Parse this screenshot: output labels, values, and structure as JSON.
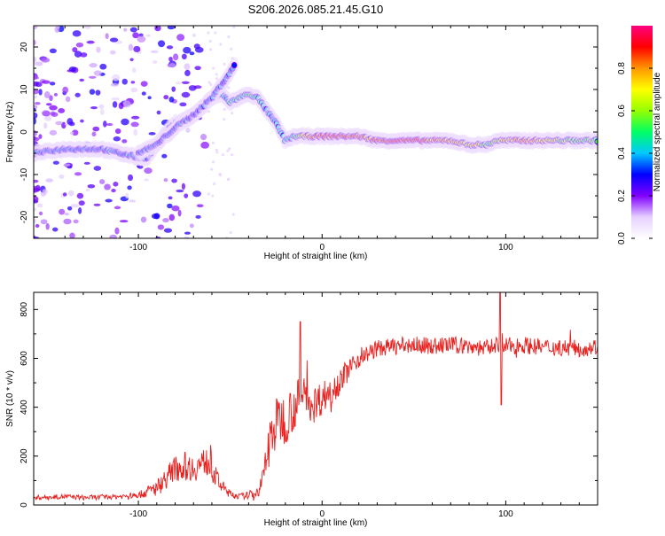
{
  "figure_title": "S206.2026.085.21.45.G10",
  "chart_data": [
    {
      "type": "heatmap",
      "title": "S206.2026.085.21.45.G10",
      "xlabel": "Height of straight line (km)",
      "ylabel": "Frequency (Hz)",
      "xlim": [
        -157,
        150
      ],
      "ylim": [
        -25,
        25
      ],
      "x_ticks": [
        -100,
        0,
        100
      ],
      "y_ticks": [
        20,
        10,
        0,
        -10,
        -20
      ],
      "colorbar": {
        "label": "Normalized spectral amplitude",
        "range": [
          0,
          1
        ],
        "ticks": [
          0.0,
          0.2,
          0.4,
          0.6,
          0.8
        ],
        "colormap": [
          "#ffffff",
          "#e6d0ff",
          "#8000ff",
          "#0000ff",
          "#00c8ff",
          "#00ff64",
          "#96ff00",
          "#ffff00",
          "#ff9600",
          "#ff0000",
          "#ff0080"
        ]
      },
      "ridge_trace": {
        "x": [
          -157,
          -140,
          -120,
          -110,
          -100,
          -95,
          -90,
          -85,
          -80,
          -75,
          -70,
          -65,
          -60,
          -55,
          -50,
          -45,
          -40,
          -35,
          -30,
          -25,
          -20,
          -15,
          -10,
          -5,
          0,
          10,
          20,
          30,
          40,
          50,
          60,
          70,
          80,
          85,
          90,
          95,
          100,
          110,
          120,
          130,
          150
        ],
        "frequency": [
          -5,
          -4,
          -4,
          -5,
          -6,
          -6,
          -3,
          0,
          2,
          3,
          4,
          6,
          8,
          9,
          7,
          8,
          9,
          8,
          5,
          2,
          -2,
          -1,
          -1,
          -1,
          -1,
          -1,
          -1,
          -2,
          -2,
          -2,
          -2,
          -2,
          -3,
          -3,
          -3,
          -2,
          -2,
          -2,
          -2,
          -2,
          -2
        ],
        "amplitude": [
          0.3,
          0.35,
          0.3,
          0.35,
          0.35,
          0.35,
          0.3,
          0.3,
          0.3,
          0.35,
          0.35,
          0.4,
          0.4,
          0.35,
          0.45,
          0.45,
          0.5,
          0.45,
          0.35,
          0.4,
          0.45,
          0.5,
          0.7,
          0.8,
          0.85,
          0.9,
          0.8,
          0.85,
          0.9,
          0.9,
          0.8,
          0.75,
          0.7,
          0.7,
          0.5,
          0.6,
          0.7,
          0.85,
          0.75,
          0.6,
          0.55
        ]
      },
      "upper_branch": {
        "x": [
          -100,
          -90,
          -80,
          -70,
          -60,
          -55,
          -50,
          -47
        ],
        "frequency": [
          -5,
          -3,
          1,
          4,
          8,
          11,
          14,
          16
        ],
        "amplitude": [
          0.3,
          0.3,
          0.3,
          0.3,
          0.35,
          0.35,
          0.35,
          0.35
        ]
      }
    },
    {
      "type": "line",
      "xlabel": "Height of straight line (km)",
      "ylabel": "SNR (10 * v/v)",
      "xlim": [
        -157,
        150
      ],
      "ylim": [
        0,
        870
      ],
      "x_ticks": [
        -100,
        0,
        100
      ],
      "y_ticks": [
        0,
        200,
        400,
        600,
        800
      ],
      "series": [
        {
          "name": "SNR",
          "color": "#e8201e",
          "x": [
            -157,
            -150,
            -140,
            -130,
            -120,
            -110,
            -100,
            -95,
            -90,
            -85,
            -80,
            -75,
            -70,
            -65,
            -62,
            -60,
            -55,
            -50,
            -45,
            -40,
            -35,
            -33,
            -30,
            -28,
            -25,
            -22,
            -20,
            -18,
            -15,
            -12,
            -10,
            -8,
            -5,
            0,
            5,
            10,
            15,
            20,
            25,
            30,
            40,
            50,
            60,
            70,
            80,
            90,
            95,
            97,
            100,
            110,
            120,
            130,
            140,
            150
          ],
          "y": [
            30,
            32,
            35,
            30,
            32,
            35,
            40,
            55,
            70,
            110,
            150,
            160,
            150,
            170,
            180,
            140,
            80,
            45,
            35,
            40,
            55,
            80,
            200,
            280,
            330,
            360,
            340,
            380,
            400,
            430,
            470,
            440,
            410,
            440,
            470,
            510,
            560,
            600,
            620,
            640,
            650,
            655,
            650,
            655,
            650,
            640,
            660,
            640,
            650,
            655,
            645,
            645,
            640,
            650
          ],
          "spikes": [
            {
              "x": -12,
              "y": 750
            },
            {
              "x": 97,
              "y": 870
            },
            {
              "x": 97.5,
              "y": 410
            }
          ],
          "noise_amplitude": [
            10,
            10,
            10,
            10,
            10,
            10,
            12,
            25,
            35,
            45,
            55,
            60,
            55,
            60,
            60,
            50,
            30,
            15,
            12,
            15,
            25,
            40,
            90,
            110,
            110,
            110,
            100,
            100,
            100,
            100,
            95,
            90,
            80,
            70,
            60,
            55,
            45,
            40,
            35,
            35,
            35,
            35,
            35,
            35,
            35,
            35,
            35,
            35,
            35,
            35,
            35,
            35,
            35,
            35
          ]
        }
      ]
    }
  ]
}
